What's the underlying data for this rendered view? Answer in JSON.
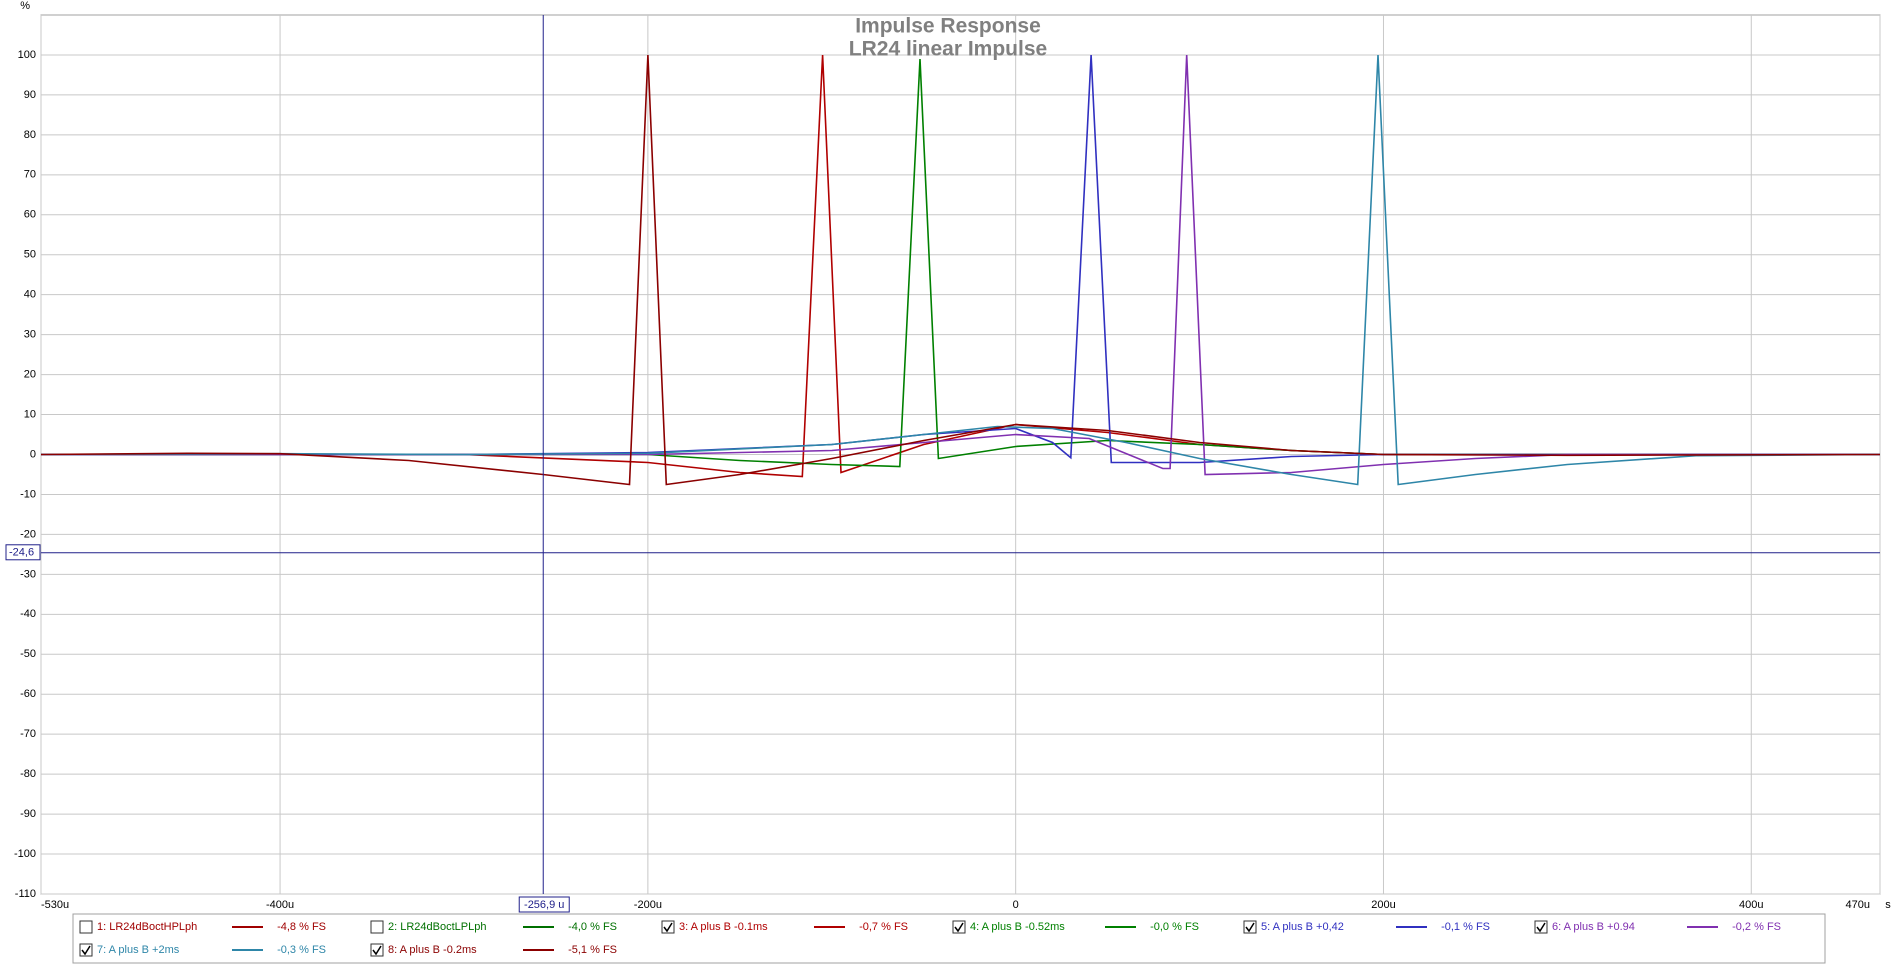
{
  "chart_data": {
    "type": "line",
    "title": "Impulse Response",
    "subtitle": "LR24 linear Impulse",
    "y_unit": "%",
    "x_unit": "s",
    "xlim": [
      -530,
      470
    ],
    "ylim": [
      -110,
      110
    ],
    "xticks": [
      {
        "value": -530,
        "label": "-530u"
      },
      {
        "value": -400,
        "label": "-400u"
      },
      {
        "value": -200,
        "label": "-200u"
      },
      0,
      {
        "value": 200,
        "label": "200u"
      },
      {
        "value": 400,
        "label": "400u"
      },
      {
        "value": 470,
        "label": "470u"
      }
    ],
    "yticks": [
      -110,
      -100,
      -90,
      -80,
      -70,
      -60,
      -50,
      -40,
      -30,
      -20,
      -10,
      0,
      10,
      20,
      30,
      40,
      50,
      60,
      70,
      80,
      90,
      100
    ],
    "grid": true,
    "cursor": {
      "x": {
        "value": -256.9,
        "label": "-256,9 u"
      },
      "y": {
        "value": -24.6,
        "label": "-24,6"
      }
    },
    "series": [
      {
        "name": "1: LR24dBoctHPLph",
        "color": "#a00000",
        "checked": false,
        "readout": "-4,8 % FS"
      },
      {
        "name": "2: LR24dBoctLPLph",
        "color": "#007000",
        "checked": false,
        "readout": "-4,0 % FS"
      },
      {
        "name": "3: A plus B -0.1ms",
        "color": "#b00000",
        "checked": true,
        "readout": "-0,7 % FS",
        "x": [
          -530,
          -300,
          -200,
          -150,
          -116,
          -105,
          -95,
          -50,
          0,
          50,
          100,
          150,
          200,
          470
        ],
        "values": [
          0,
          0,
          -2,
          -4.5,
          -5.5,
          100,
          -4.5,
          2.5,
          7.5,
          5.5,
          2.5,
          1,
          0,
          0
        ]
      },
      {
        "name": "4: A plus B -0.52ms",
        "color": "#008000",
        "checked": true,
        "readout": "-0,0 % FS",
        "x": [
          -530,
          -200,
          -150,
          -100,
          -63,
          -52,
          -42,
          0,
          50,
          100,
          150,
          200,
          470
        ],
        "values": [
          0,
          0,
          -1.5,
          -2.5,
          -3,
          99,
          -1,
          2,
          3.5,
          2.5,
          1,
          0,
          0
        ]
      },
      {
        "name": "5: A plus B +0,42",
        "color": "#3030c0",
        "checked": true,
        "readout": "-0,1 % FS",
        "x": [
          -530,
          -300,
          -200,
          -100,
          -50,
          0,
          20,
          30,
          41,
          52,
          100,
          150,
          200,
          470
        ],
        "values": [
          0,
          0,
          0.5,
          2.5,
          5,
          6.5,
          3,
          -0.8,
          100,
          -2,
          -2,
          -0.5,
          0,
          0
        ]
      },
      {
        "name": "6: A plus B +0.94",
        "color": "#8030b0",
        "checked": true,
        "readout": "-0,2 % FS",
        "x": [
          -530,
          -200,
          -100,
          -50,
          0,
          40,
          80,
          84,
          93,
          103,
          150,
          200,
          250,
          300,
          470
        ],
        "values": [
          0,
          0,
          1,
          3,
          5,
          4,
          -3.5,
          -3.5,
          100,
          -5,
          -4.5,
          -2.5,
          -1,
          0,
          0
        ]
      },
      {
        "name": "7: A plus B +2ms",
        "color": "#2e86a8",
        "checked": true,
        "readout": "-0,3 % FS",
        "x": [
          -530,
          -400,
          -300,
          -200,
          -100,
          -50,
          -10,
          20,
          60,
          100,
          150,
          186,
          197,
          208,
          250,
          300,
          370,
          470
        ],
        "values": [
          0,
          0.2,
          0,
          0.3,
          2.5,
          5,
          7,
          6.5,
          3,
          -1,
          -5,
          -7.5,
          100,
          -7.5,
          -5,
          -2.5,
          -0.3,
          0
        ]
      },
      {
        "name": "8: A plus B -0.2ms",
        "color": "#8b0000",
        "checked": true,
        "readout": "-5,1 % FS",
        "x": [
          -530,
          -450,
          -400,
          -330,
          -257,
          -210,
          -200,
          -190,
          -150,
          -100,
          -50,
          0,
          50,
          100,
          150,
          200,
          300,
          470
        ],
        "values": [
          0,
          0.3,
          0.2,
          -1.5,
          -5,
          -7.5,
          100,
          -7.5,
          -5,
          -1,
          3.5,
          7.5,
          6,
          3,
          1,
          0,
          -0.2,
          0
        ]
      }
    ]
  }
}
